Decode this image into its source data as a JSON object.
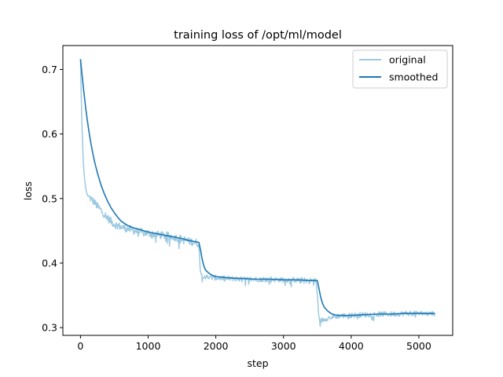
{
  "chart_data": {
    "type": "line",
    "title": "training loss of /opt/ml/model",
    "xlabel": "step",
    "ylabel": "loss",
    "xlim": [
      -260,
      5500
    ],
    "ylim": [
      0.288,
      0.737
    ],
    "xticks": [
      0,
      1000,
      2000,
      3000,
      4000,
      5000
    ],
    "yticks": [
      0.3,
      0.4,
      0.5,
      0.6,
      0.7
    ],
    "legend_position": "top-right",
    "grid": false,
    "series": [
      {
        "name": "original",
        "color": "#9ecae1",
        "points": [
          [
            0,
            0.716
          ],
          [
            20,
            0.62
          ],
          [
            40,
            0.56
          ],
          [
            60,
            0.53
          ],
          [
            80,
            0.515
          ],
          [
            100,
            0.505
          ],
          [
            150,
            0.5
          ],
          [
            200,
            0.495
          ],
          [
            250,
            0.488
          ],
          [
            300,
            0.482
          ],
          [
            350,
            0.476
          ],
          [
            400,
            0.47
          ],
          [
            450,
            0.465
          ],
          [
            500,
            0.46
          ],
          [
            600,
            0.456
          ],
          [
            700,
            0.453
          ],
          [
            800,
            0.45
          ],
          [
            900,
            0.448
          ],
          [
            1000,
            0.446
          ],
          [
            1100,
            0.445
          ],
          [
            1200,
            0.443
          ],
          [
            1300,
            0.442
          ],
          [
            1400,
            0.44
          ],
          [
            1500,
            0.437
          ],
          [
            1600,
            0.434
          ],
          [
            1700,
            0.432
          ],
          [
            1740,
            0.431
          ],
          [
            1760,
            0.41
          ],
          [
            1780,
            0.385
          ],
          [
            1800,
            0.38
          ],
          [
            1900,
            0.378
          ],
          [
            2000,
            0.377
          ],
          [
            2200,
            0.376
          ],
          [
            2400,
            0.375
          ],
          [
            2600,
            0.375
          ],
          [
            2800,
            0.375
          ],
          [
            3000,
            0.374
          ],
          [
            3200,
            0.374
          ],
          [
            3400,
            0.373
          ],
          [
            3480,
            0.373
          ],
          [
            3500,
            0.35
          ],
          [
            3520,
            0.32
          ],
          [
            3540,
            0.31
          ],
          [
            3600,
            0.313
          ],
          [
            3700,
            0.316
          ],
          [
            3800,
            0.318
          ],
          [
            4000,
            0.319
          ],
          [
            4200,
            0.32
          ],
          [
            4400,
            0.321
          ],
          [
            4600,
            0.321
          ],
          [
            4800,
            0.322
          ],
          [
            5000,
            0.322
          ],
          [
            5240,
            0.322
          ]
        ]
      },
      {
        "name": "smoothed",
        "color": "#1f77b4",
        "points": [
          [
            0,
            0.716
          ],
          [
            25,
            0.69
          ],
          [
            50,
            0.665
          ],
          [
            75,
            0.642
          ],
          [
            100,
            0.622
          ],
          [
            125,
            0.604
          ],
          [
            150,
            0.588
          ],
          [
            175,
            0.574
          ],
          [
            200,
            0.561
          ],
          [
            225,
            0.55
          ],
          [
            250,
            0.54
          ],
          [
            275,
            0.531
          ],
          [
            300,
            0.522
          ],
          [
            350,
            0.508
          ],
          [
            400,
            0.496
          ],
          [
            450,
            0.486
          ],
          [
            500,
            0.478
          ],
          [
            550,
            0.471
          ],
          [
            600,
            0.465
          ],
          [
            700,
            0.458
          ],
          [
            800,
            0.454
          ],
          [
            900,
            0.451
          ],
          [
            1000,
            0.448
          ],
          [
            1100,
            0.446
          ],
          [
            1200,
            0.444
          ],
          [
            1300,
            0.442
          ],
          [
            1400,
            0.44
          ],
          [
            1500,
            0.438
          ],
          [
            1600,
            0.435
          ],
          [
            1700,
            0.433
          ],
          [
            1750,
            0.432
          ],
          [
            1775,
            0.42
          ],
          [
            1800,
            0.405
          ],
          [
            1825,
            0.395
          ],
          [
            1850,
            0.389
          ],
          [
            1900,
            0.384
          ],
          [
            1950,
            0.381
          ],
          [
            2000,
            0.379
          ],
          [
            2200,
            0.377
          ],
          [
            2400,
            0.376
          ],
          [
            2600,
            0.375
          ],
          [
            2800,
            0.375
          ],
          [
            3000,
            0.374
          ],
          [
            3200,
            0.374
          ],
          [
            3400,
            0.373
          ],
          [
            3500,
            0.373
          ],
          [
            3525,
            0.36
          ],
          [
            3550,
            0.347
          ],
          [
            3575,
            0.338
          ],
          [
            3600,
            0.332
          ],
          [
            3650,
            0.326
          ],
          [
            3700,
            0.322
          ],
          [
            3750,
            0.32
          ],
          [
            3800,
            0.319
          ],
          [
            4000,
            0.319
          ],
          [
            4200,
            0.32
          ],
          [
            4400,
            0.321
          ],
          [
            4600,
            0.321
          ],
          [
            4800,
            0.322
          ],
          [
            5000,
            0.322
          ],
          [
            5240,
            0.322
          ]
        ]
      }
    ]
  }
}
